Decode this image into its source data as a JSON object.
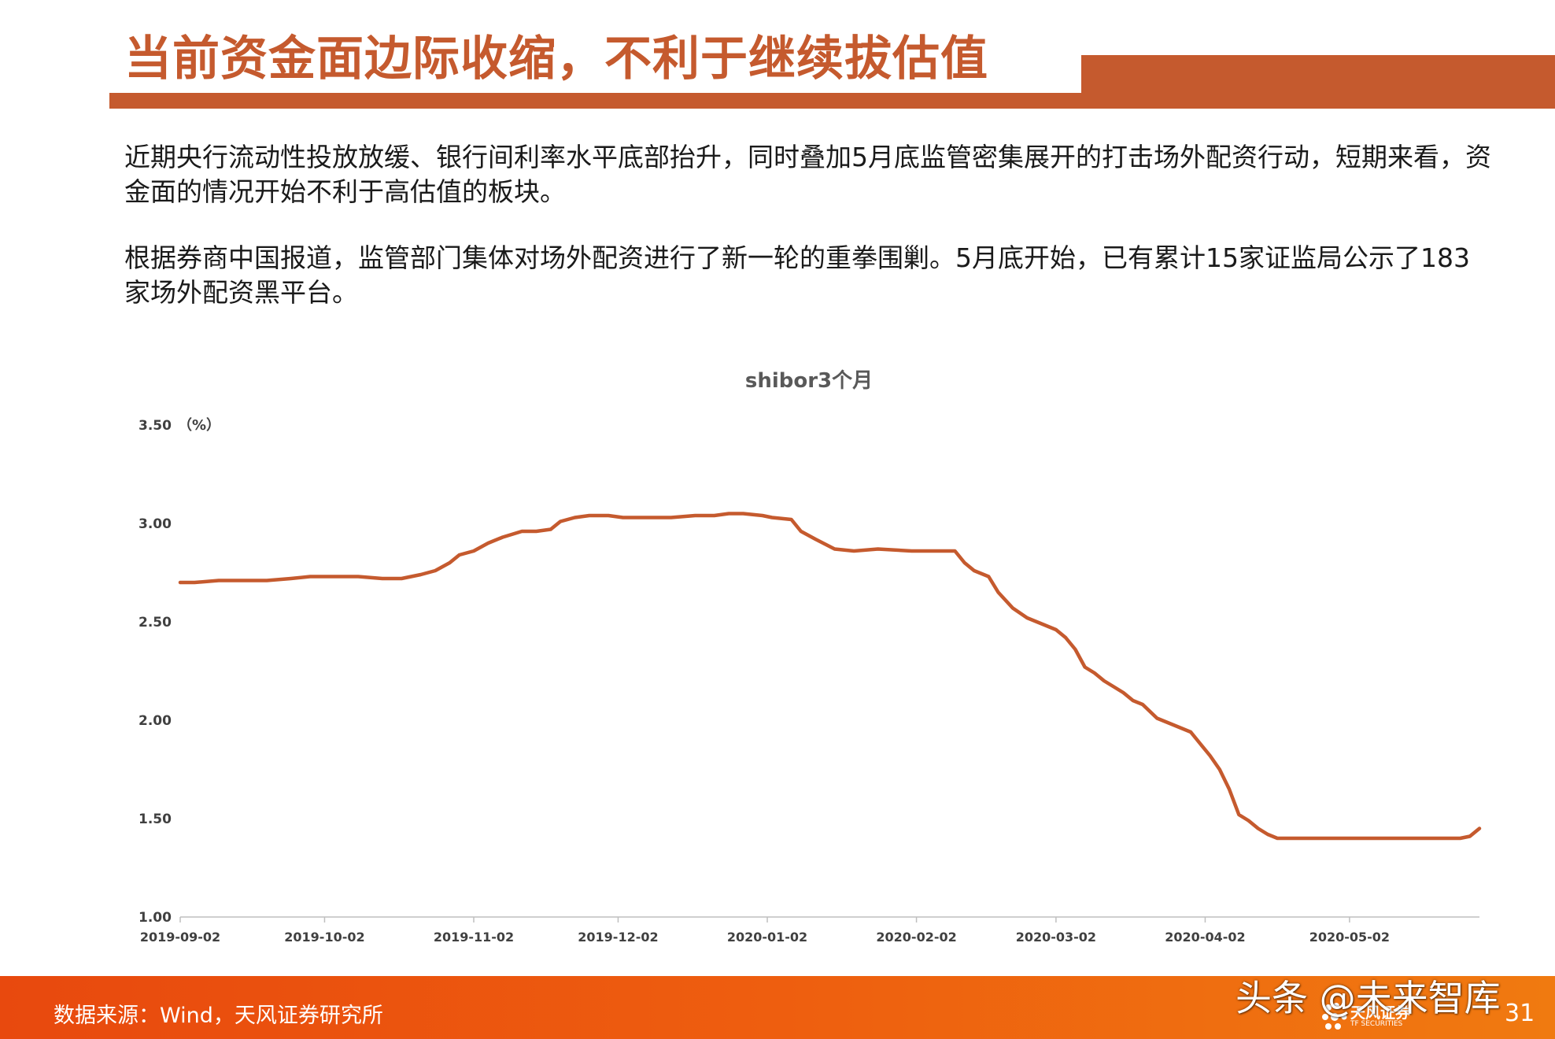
{
  "page": {
    "title": "当前资金面边际收缩，不利于继续拔估值",
    "paragraph1": "近期央行流动性投放放缓、银行间利率水平底部抬升，同时叠加5月底监管密集展开的打击场外配资行动，短期来看，资金面的情况开始不利于高估值的板块。",
    "paragraph2": "根据券商中国报道，监管部门集体对场外配资进行了新一轮的重拳围剿。5月底开始，已有累计15家证监局公示了183家场外配资黑平台。",
    "source": "数据来源：Wind，天风证券研究所",
    "watermark": "头条 @未来智库",
    "brand_name": "天风证券",
    "brand_sub": "TF SECURITIES",
    "page_number": "31",
    "accent_color": "#c55a2e",
    "footer_color": "#ee5e0f"
  },
  "chart_data": {
    "type": "line",
    "title": "shibor3个月",
    "ylabel": "（%）",
    "ylim": [
      1.0,
      3.5
    ],
    "yticks": [
      "1.00",
      "1.50",
      "2.00",
      "2.50",
      "3.00",
      "3.50"
    ],
    "xlim": [
      "2019-09-02",
      "2020-05-29"
    ],
    "xticks": [
      "2019-09-02",
      "2019-10-02",
      "2019-11-02",
      "2019-12-02",
      "2020-01-02",
      "2020-02-02",
      "2020-03-02",
      "2020-04-02",
      "2020-05-02"
    ],
    "grid": false,
    "line_color": "#c55a2e",
    "series": [
      {
        "x": [
          "2019-09-02",
          "2019-09-05",
          "2019-09-10",
          "2019-09-15",
          "2019-09-18",
          "2019-09-20",
          "2019-09-25",
          "2019-09-29",
          "2019-10-02",
          "2019-10-09",
          "2019-10-14",
          "2019-10-18",
          "2019-10-22",
          "2019-10-25",
          "2019-10-28",
          "2019-10-30",
          "2019-11-02",
          "2019-11-05",
          "2019-11-08",
          "2019-11-12",
          "2019-11-15",
          "2019-11-18",
          "2019-11-20",
          "2019-11-23",
          "2019-11-26",
          "2019-11-30",
          "2019-12-03",
          "2019-12-08",
          "2019-12-13",
          "2019-12-18",
          "2019-12-22",
          "2019-12-25",
          "2019-12-28",
          "2020-01-01",
          "2020-01-03",
          "2020-01-07",
          "2020-01-09",
          "2020-01-12",
          "2020-01-16",
          "2020-01-20",
          "2020-01-25",
          "2020-02-01",
          "2020-02-04",
          "2020-02-06",
          "2020-02-08",
          "2020-02-10",
          "2020-02-12",
          "2020-02-14",
          "2020-02-17",
          "2020-02-19",
          "2020-02-22",
          "2020-02-25",
          "2020-02-28",
          "2020-03-02",
          "2020-03-04",
          "2020-03-06",
          "2020-03-08",
          "2020-03-10",
          "2020-03-12",
          "2020-03-14",
          "2020-03-16",
          "2020-03-18",
          "2020-03-20",
          "2020-03-23",
          "2020-03-26",
          "2020-03-30",
          "2020-04-01",
          "2020-04-03",
          "2020-04-05",
          "2020-04-07",
          "2020-04-09",
          "2020-04-11",
          "2020-04-13",
          "2020-04-15",
          "2020-04-17",
          "2020-04-19",
          "2020-04-21",
          "2020-04-23",
          "2020-04-25",
          "2020-04-30",
          "2020-05-05",
          "2020-05-10",
          "2020-05-15",
          "2020-05-20",
          "2020-05-25",
          "2020-05-27",
          "2020-05-29"
        ],
        "values": [
          2.7,
          2.7,
          2.71,
          2.71,
          2.71,
          2.71,
          2.72,
          2.73,
          2.73,
          2.73,
          2.72,
          2.72,
          2.74,
          2.76,
          2.8,
          2.84,
          2.86,
          2.9,
          2.93,
          2.96,
          2.96,
          2.97,
          3.01,
          3.03,
          3.04,
          3.04,
          3.03,
          3.03,
          3.03,
          3.04,
          3.04,
          3.05,
          3.05,
          3.04,
          3.03,
          3.02,
          2.96,
          2.92,
          2.87,
          2.86,
          2.87,
          2.86,
          2.86,
          2.86,
          2.86,
          2.86,
          2.8,
          2.76,
          2.73,
          2.65,
          2.57,
          2.52,
          2.49,
          2.46,
          2.42,
          2.36,
          2.27,
          2.24,
          2.2,
          2.17,
          2.14,
          2.1,
          2.08,
          2.01,
          1.98,
          1.94,
          1.88,
          1.82,
          1.75,
          1.65,
          1.52,
          1.49,
          1.45,
          1.42,
          1.4,
          1.4,
          1.4,
          1.4,
          1.4,
          1.4,
          1.4,
          1.4,
          1.4,
          1.4,
          1.4,
          1.41,
          1.45
        ]
      }
    ]
  }
}
